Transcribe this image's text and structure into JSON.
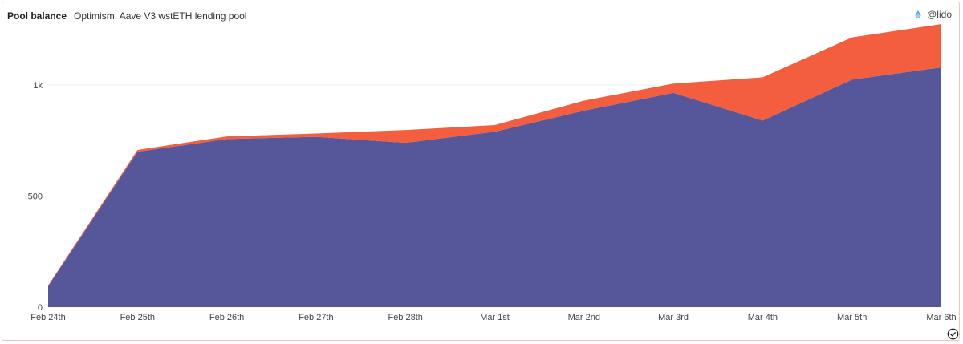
{
  "header": {
    "title": "Pool balance",
    "subtitle": "Optimism: Aave V3 wstETH lending pool",
    "brand": "@lido"
  },
  "colors": {
    "series_1": "#56569a",
    "series_2": "#f35e3e",
    "grid": "#eeeeee",
    "border": "#f2c4bd"
  },
  "icons": {
    "brand": "lido-drop-icon",
    "status": "check-circle-icon"
  },
  "chart_data": {
    "type": "area",
    "stacked": true,
    "categories": [
      "Feb 24th",
      "Feb 25th",
      "Feb 26th",
      "Feb 27th",
      "Feb 28th",
      "Mar 1st",
      "Mar 2nd",
      "Mar 3rd",
      "Mar 4th",
      "Mar 5th",
      "Mar 6th"
    ],
    "series": [
      {
        "values": [
          95,
          700,
          757,
          767,
          740,
          790,
          885,
          965,
          840,
          1025,
          1080
        ]
      },
      {
        "values": [
          3,
          8,
          12,
          15,
          58,
          30,
          45,
          42,
          195,
          190,
          195
        ]
      }
    ],
    "ylim": [
      0,
      1275
    ],
    "yticks": [
      0,
      500,
      1000
    ],
    "ytick_labels": [
      "0",
      "500",
      "1k"
    ],
    "grid": true,
    "legend": "none"
  }
}
